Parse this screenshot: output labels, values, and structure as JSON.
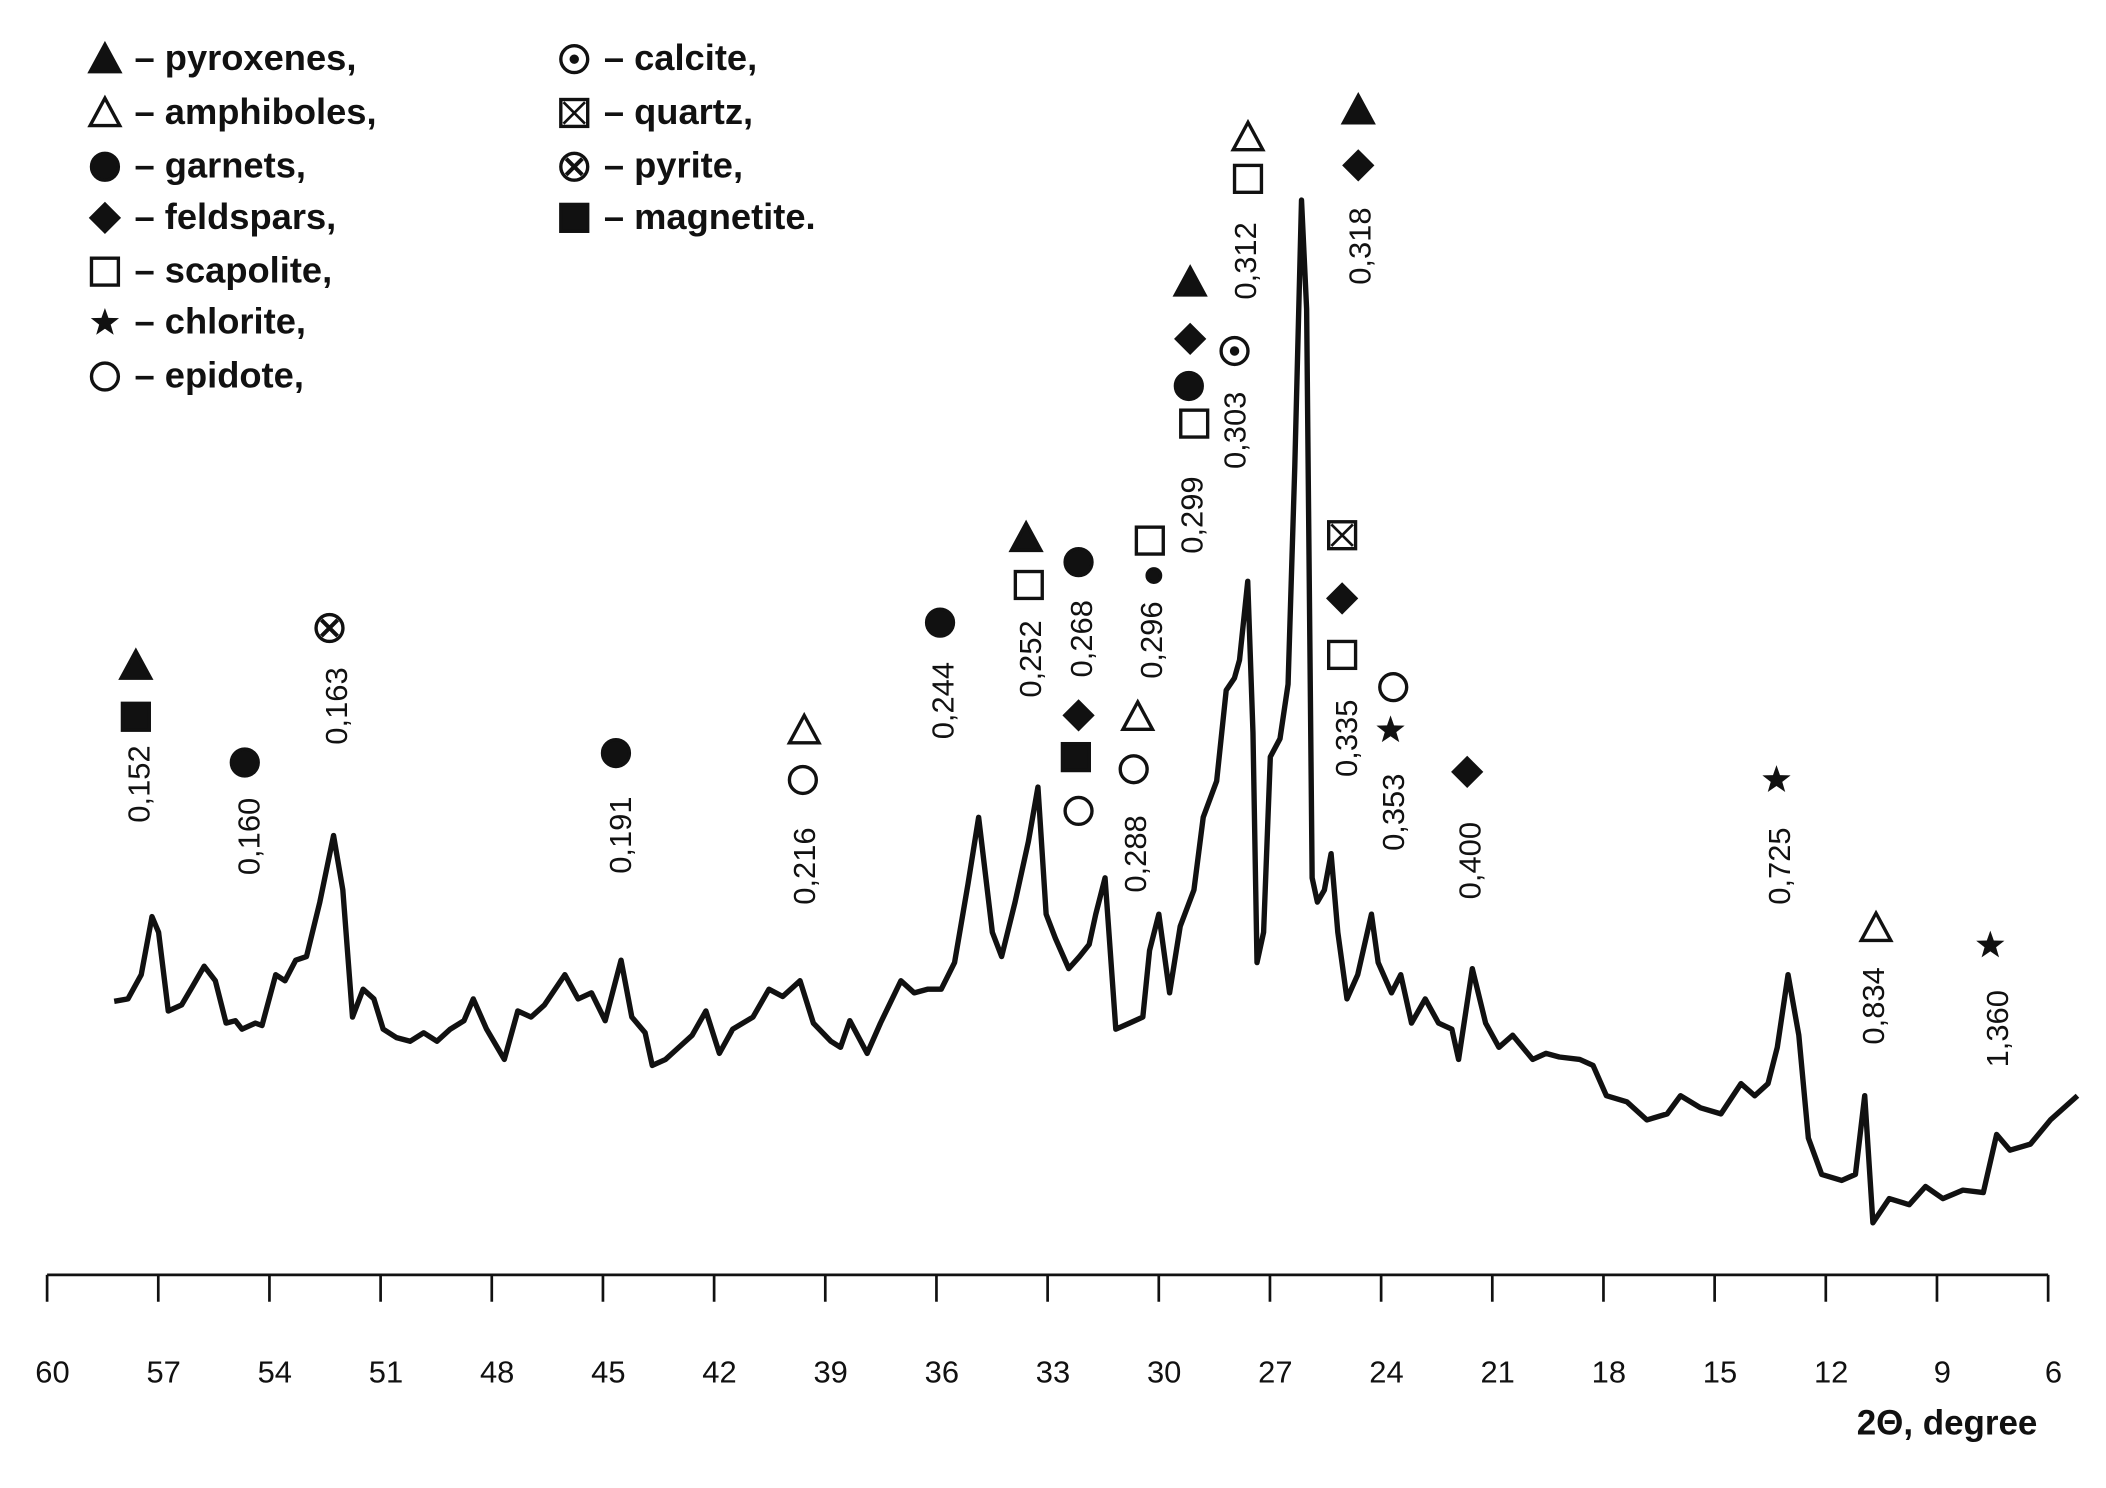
{
  "chart_data": {
    "type": "line",
    "x_label": "2Θ, degree",
    "color": "#111111",
    "xlim": [
      60,
      6
    ],
    "ylim": [
      0,
      100
    ],
    "xticks": [
      60,
      57,
      54,
      51,
      48,
      45,
      42,
      39,
      36,
      33,
      30,
      27,
      24,
      21,
      18,
      15,
      12,
      9,
      6
    ],
    "x": [
      58.19,
      57.82,
      57.46,
      57.17,
      56.99,
      56.73,
      56.37,
      56.08,
      55.76,
      55.46,
      55.17,
      54.92,
      54.74,
      54.38,
      54.2,
      53.83,
      53.58,
      53.29,
      53.0,
      52.64,
      52.27,
      52.02,
      51.76,
      51.47,
      51.18,
      50.93,
      50.57,
      50.2,
      49.84,
      49.48,
      49.12,
      48.75,
      48.5,
      48.14,
      47.66,
      47.3,
      46.94,
      46.58,
      46.03,
      45.67,
      45.31,
      44.94,
      44.51,
      44.22,
      43.86,
      43.67,
      43.31,
      42.95,
      42.59,
      42.22,
      41.86,
      41.5,
      40.95,
      40.52,
      40.15,
      39.68,
      39.32,
      38.85,
      38.59,
      38.34,
      37.87,
      37.51,
      36.96,
      36.6,
      36.24,
      35.87,
      35.51,
      35.15,
      34.86,
      34.49,
      34.24,
      33.88,
      33.52,
      33.26,
      33.04,
      32.79,
      32.43,
      32.14,
      31.88,
      31.7,
      31.45,
      31.16,
      30.79,
      30.43,
      30.25,
      30.0,
      29.71,
      29.42,
      29.05,
      28.8,
      28.44,
      28.18,
      27.96,
      27.82,
      27.6,
      27.46,
      27.35,
      27.17,
      26.99,
      26.73,
      26.51,
      26.33,
      26.15,
      26.01,
      25.86,
      25.72,
      25.53,
      25.35,
      25.17,
      24.92,
      24.63,
      24.26,
      24.08,
      23.72,
      23.47,
      23.18,
      22.81,
      22.45,
      22.09,
      21.91,
      21.54,
      21.18,
      20.82,
      20.45,
      19.91,
      19.55,
      19.19,
      18.64,
      18.28,
      17.92,
      17.37,
      16.83,
      16.28,
      15.92,
      15.38,
      14.83,
      14.29,
      13.92,
      13.56,
      13.31,
      13.02,
      12.73,
      12.47,
      12.11,
      11.57,
      11.2,
      10.95,
      10.73,
      10.29,
      9.75,
      9.31,
      8.84,
      8.3,
      7.75,
      7.39,
      7.03,
      6.48,
      5.94,
      5.21
    ],
    "values": [
      22.6,
      22.8,
      24.8,
      29.6,
      28.3,
      21.8,
      22.3,
      23.8,
      25.5,
      24.3,
      20.8,
      21.0,
      20.3,
      20.8,
      20.6,
      24.8,
      24.3,
      26.0,
      26.3,
      30.8,
      36.3,
      31.8,
      21.3,
      23.6,
      22.8,
      20.3,
      19.6,
      19.3,
      20.0,
      19.3,
      20.3,
      21.0,
      22.8,
      20.3,
      17.8,
      21.8,
      21.3,
      22.3,
      24.8,
      22.8,
      23.3,
      21.0,
      26.0,
      21.3,
      20.0,
      17.3,
      17.8,
      18.8,
      19.8,
      21.8,
      18.3,
      20.3,
      21.3,
      23.6,
      23.0,
      24.3,
      20.8,
      19.3,
      18.8,
      21.0,
      18.3,
      20.8,
      24.3,
      23.3,
      23.6,
      23.6,
      25.8,
      32.3,
      37.8,
      28.3,
      26.3,
      30.8,
      35.8,
      40.3,
      29.8,
      27.8,
      25.3,
      26.3,
      27.3,
      29.8,
      32.8,
      20.3,
      20.8,
      21.3,
      26.8,
      29.8,
      23.3,
      28.8,
      31.8,
      37.8,
      40.8,
      48.3,
      49.3,
      50.8,
      57.3,
      44.8,
      25.8,
      28.3,
      42.8,
      44.3,
      48.8,
      66.8,
      88.8,
      79.8,
      32.8,
      30.8,
      31.8,
      34.8,
      28.3,
      22.8,
      24.8,
      29.8,
      25.8,
      23.3,
      24.8,
      20.8,
      22.8,
      20.8,
      20.3,
      17.8,
      25.3,
      20.8,
      18.8,
      19.8,
      17.8,
      18.3,
      18.0,
      17.8,
      17.3,
      14.8,
      14.3,
      12.8,
      13.3,
      14.8,
      13.8,
      13.3,
      15.8,
      14.8,
      15.8,
      18.8,
      24.8,
      19.8,
      11.3,
      8.3,
      7.8,
      8.3,
      14.8,
      4.3,
      6.3,
      5.8,
      7.3,
      6.3,
      7.0,
      6.8,
      11.6,
      10.3,
      10.8,
      12.8,
      14.8
    ],
    "legend": [
      "– pyroxenes,",
      "– amphiboles,",
      "– garnets,",
      "– feldspars,",
      "– scapolite,",
      "– chlorite,",
      "– epidote,",
      "– calcite,",
      "– quartz,",
      "– pyrite,",
      "– magnetite."
    ],
    "annotations": [
      "0,152",
      "0,160",
      "0,163",
      "0,191",
      "0,216",
      "0,244",
      "0,252",
      "0,268",
      "0,288",
      "0,296",
      "0,299",
      "0,303",
      "0,312",
      "0,318",
      "0,335",
      "0,353",
      "0,400",
      "0,725",
      "0,834",
      "1,360"
    ]
  }
}
